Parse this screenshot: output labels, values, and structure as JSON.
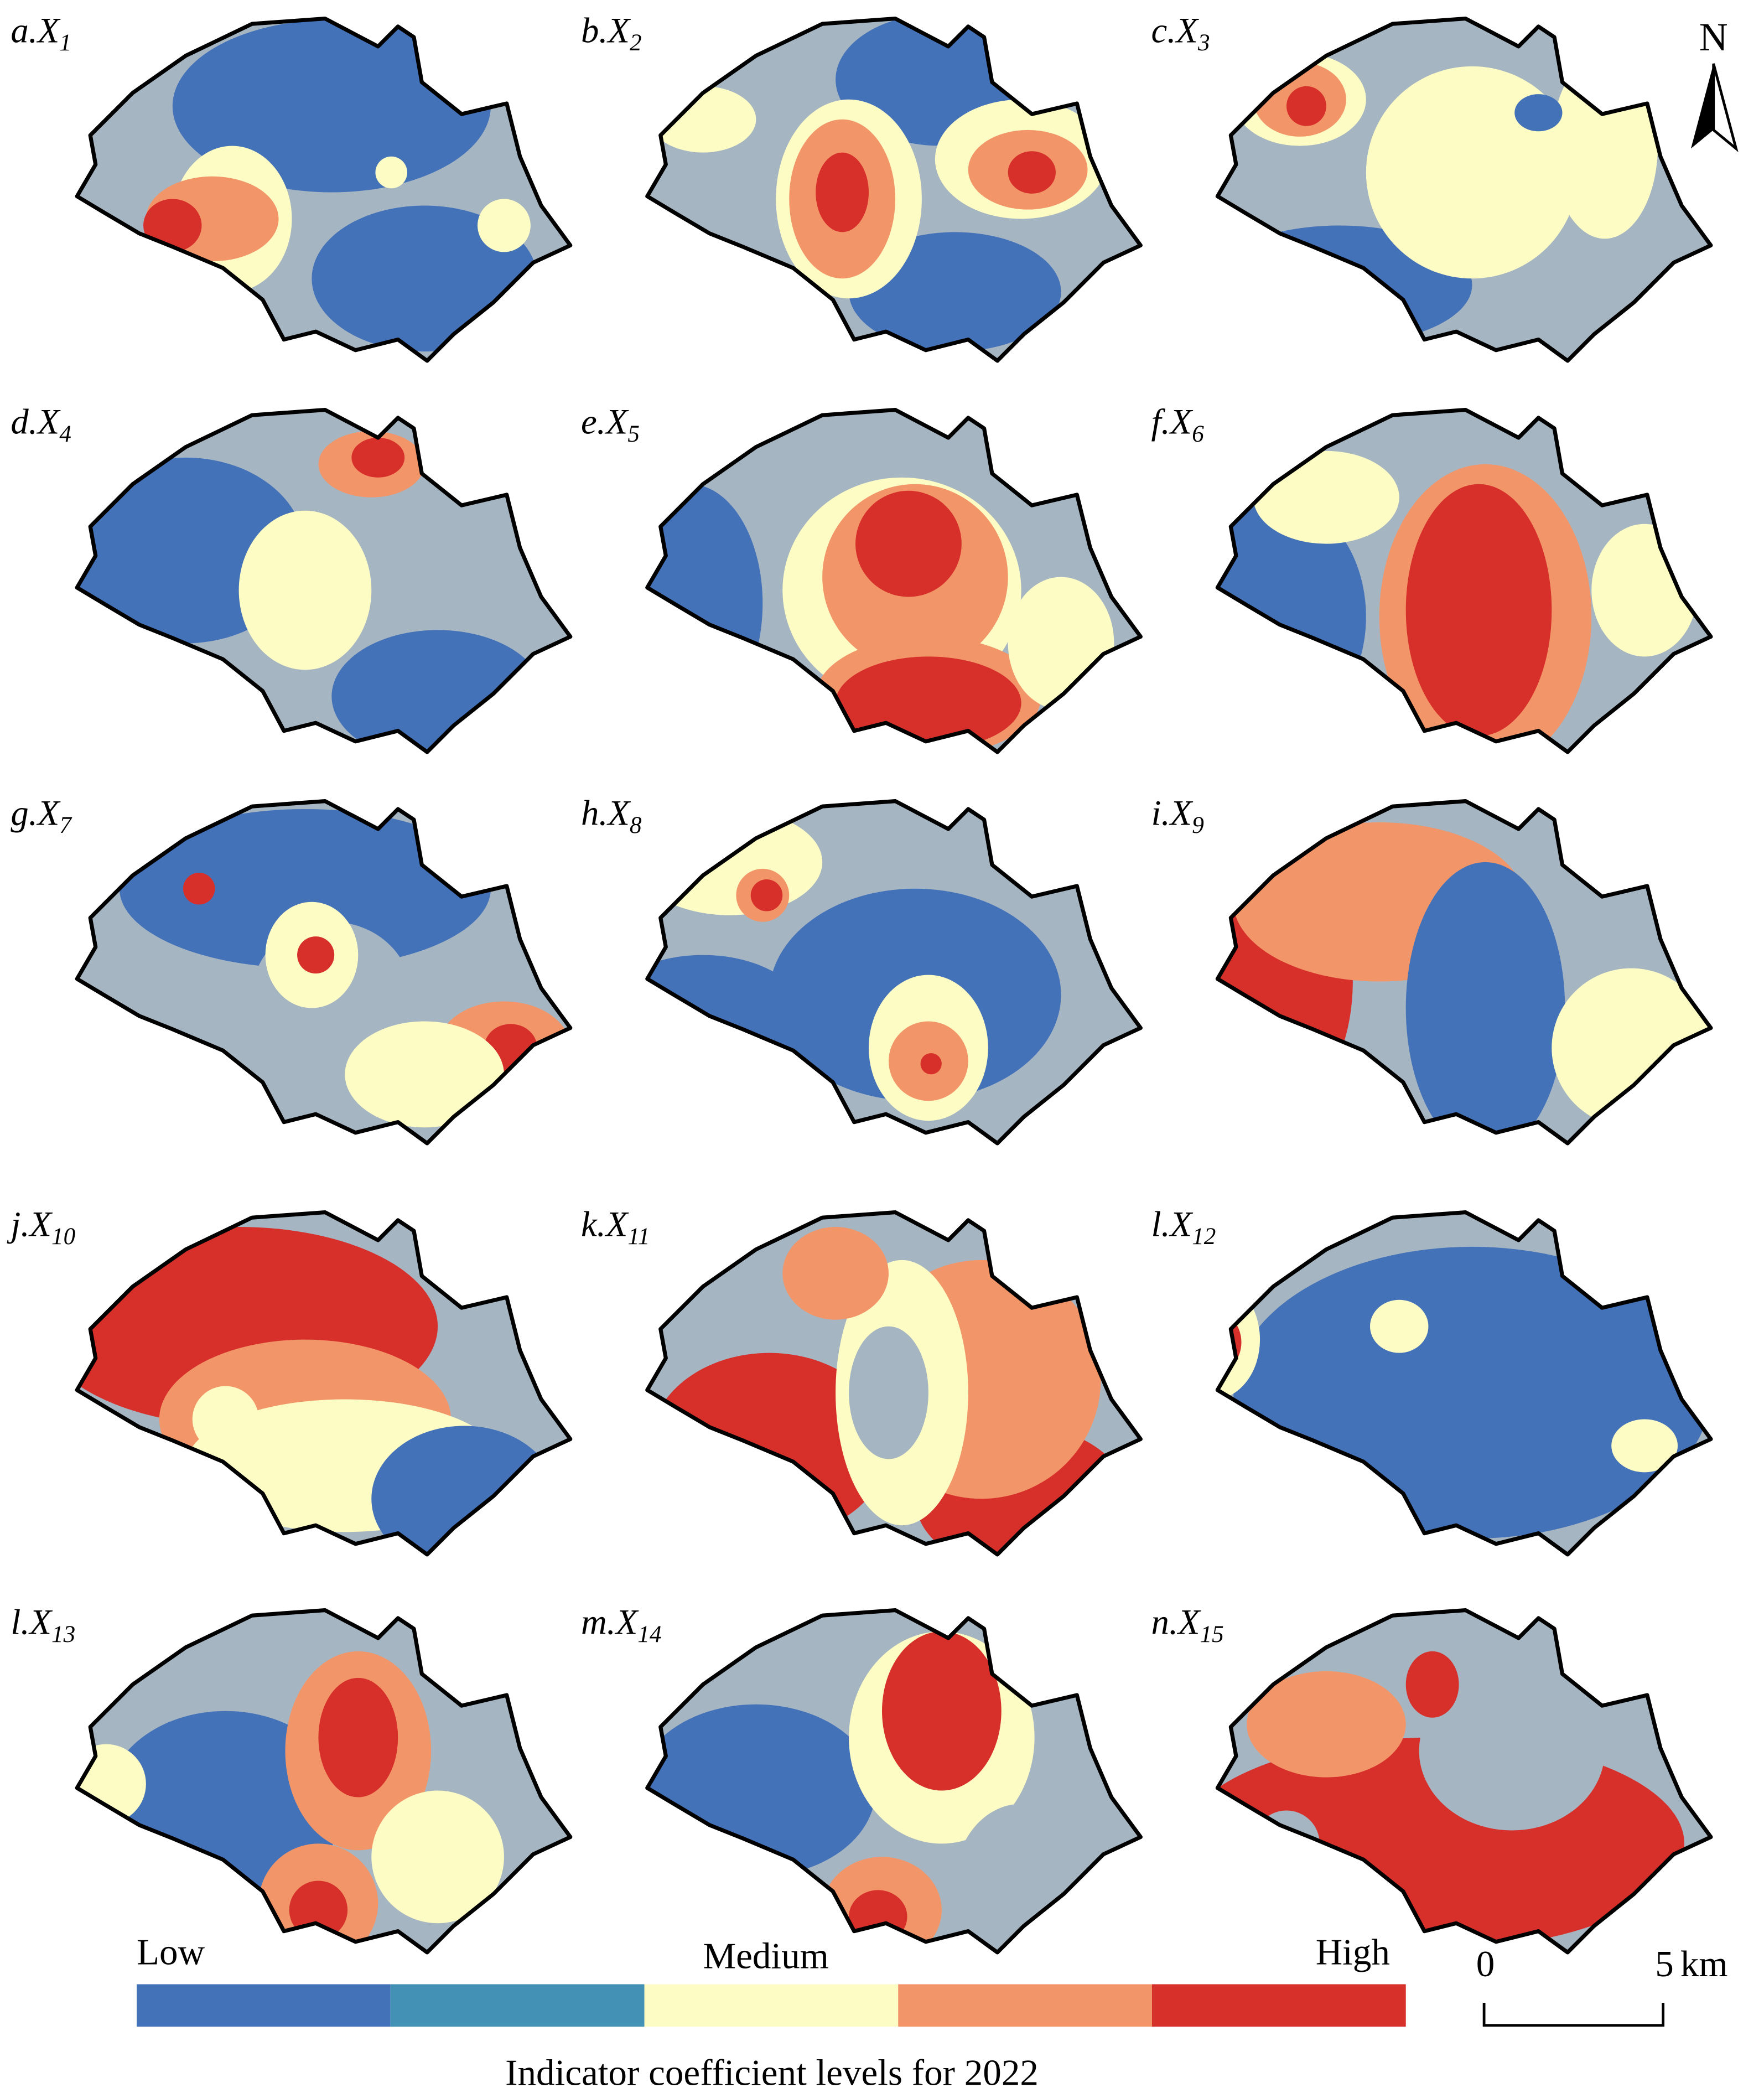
{
  "panels": [
    {
      "prefix": "a.X",
      "sub": "1"
    },
    {
      "prefix": "b.X",
      "sub": "2"
    },
    {
      "prefix": "c.X",
      "sub": "3"
    },
    {
      "prefix": "d.X",
      "sub": "4"
    },
    {
      "prefix": "e.X",
      "sub": "5"
    },
    {
      "prefix": "f.X",
      "sub": "6"
    },
    {
      "prefix": "g.X",
      "sub": "7"
    },
    {
      "prefix": "h.X",
      "sub": "8"
    },
    {
      "prefix": "i.X",
      "sub": "9"
    },
    {
      "prefix": "j.X",
      "sub": "10"
    },
    {
      "prefix": "k.X",
      "sub": "11"
    },
    {
      "prefix": "l.X",
      "sub": "12"
    },
    {
      "prefix": "l.X",
      "sub": "13"
    },
    {
      "prefix": "m.X",
      "sub": "14"
    },
    {
      "prefix": "n.X",
      "sub": "15"
    }
  ],
  "legend": {
    "title": "Indicator coefficient levels for 2022",
    "low": "Low",
    "medium": "Medium",
    "high": "High",
    "colors": [
      "#4472b8",
      "#4391b5",
      "#fdfcc4",
      "#f2966a",
      "#d7302a"
    ]
  },
  "north": "N",
  "scale_bar": {
    "start": "0",
    "end": "5",
    "unit": "km"
  }
}
